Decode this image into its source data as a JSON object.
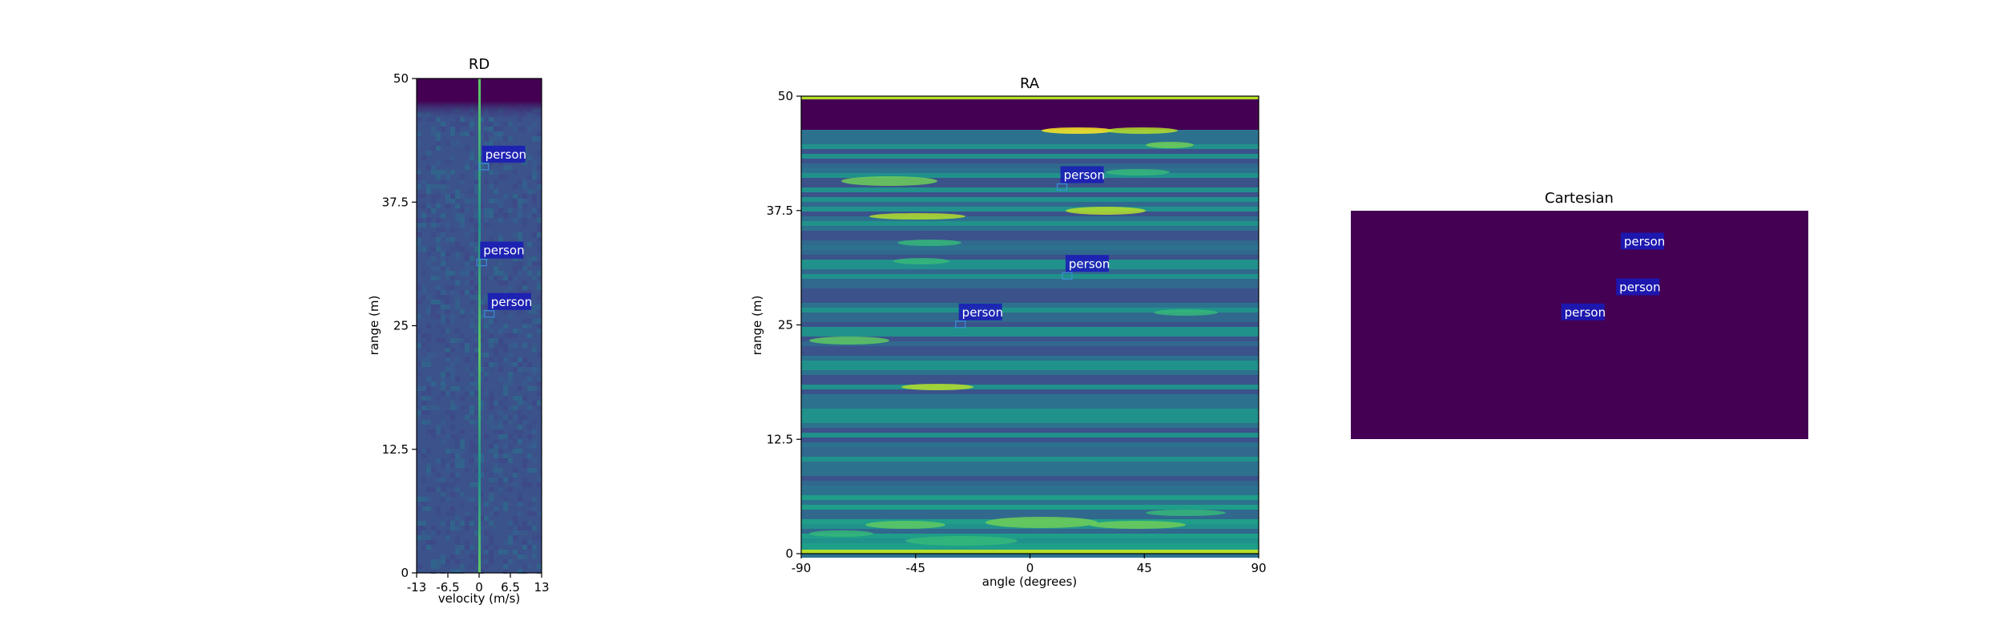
{
  "chart_data": [
    {
      "type": "heatmap",
      "title": "RD",
      "xlabel": "velocity (m/s)",
      "ylabel": "range (m)",
      "xlim": [
        -13,
        13
      ],
      "ylim": [
        0,
        50
      ],
      "xticks": [
        "-13",
        "-6.5",
        "0",
        "6.5",
        "13"
      ],
      "yticks": [
        "0",
        "12.5",
        "25",
        "37.5",
        "50"
      ],
      "colormap": "viridis",
      "detections": [
        {
          "label": "person",
          "x": 0.6,
          "y": 41.5
        },
        {
          "label": "person",
          "x": 0.2,
          "y": 31.8
        },
        {
          "label": "person",
          "x": 1.8,
          "y": 26.6
        }
      ]
    },
    {
      "type": "heatmap",
      "title": "RA",
      "xlabel": "angle (degrees)",
      "ylabel": "range (m)",
      "xlim": [
        -90,
        90
      ],
      "ylim": [
        0,
        50
      ],
      "xticks": [
        "-90",
        "-45",
        "0",
        "45",
        "90"
      ],
      "yticks": [
        "0",
        "12.5",
        "25",
        "37.5",
        "50"
      ],
      "colormap": "viridis",
      "detections": [
        {
          "label": "person",
          "x": 12,
          "y": 40.5
        },
        {
          "label": "person",
          "x": 14,
          "y": 30.8
        },
        {
          "label": "person",
          "x": -28,
          "y": 25.5
        }
      ]
    },
    {
      "type": "scatter",
      "title": "Cartesian",
      "background": "#440154",
      "detections": [
        {
          "label": "person",
          "x": 0.59,
          "y": 0.83
        },
        {
          "label": "person",
          "x": 0.58,
          "y": 0.63
        },
        {
          "label": "person",
          "x": 0.46,
          "y": 0.52
        }
      ]
    }
  ],
  "colors": {
    "det_box_bg": "#1a1ab8",
    "det_text": "#ffffff",
    "cart_bg": "#440154"
  }
}
